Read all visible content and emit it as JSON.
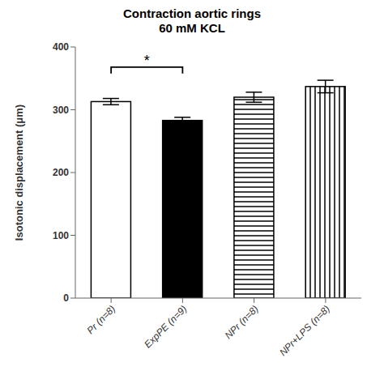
{
  "chart_data": {
    "type": "bar",
    "title": "Contraction aortic rings\n60 mM KCL",
    "ylabel": "Isotonic displacement (μm)",
    "categories": [
      "Pr (n=8)",
      "ExpPE (n=9)",
      "NPr (n=8)",
      "NPr+LPS (n=8)"
    ],
    "values": [
      313,
      283,
      320,
      337
    ],
    "errors": [
      5,
      5,
      8,
      10
    ],
    "colors": [
      "white",
      "black",
      "white",
      "white"
    ],
    "ylim": [
      0,
      400
    ],
    "yticks": [
      0,
      100,
      200,
      300,
      400
    ],
    "grid": false,
    "annotations": [
      {
        "text": "*",
        "x": [
          "Pr (n=8)",
          "ExpPE (n=9)"
        ],
        "y": 368
      }
    ]
  }
}
